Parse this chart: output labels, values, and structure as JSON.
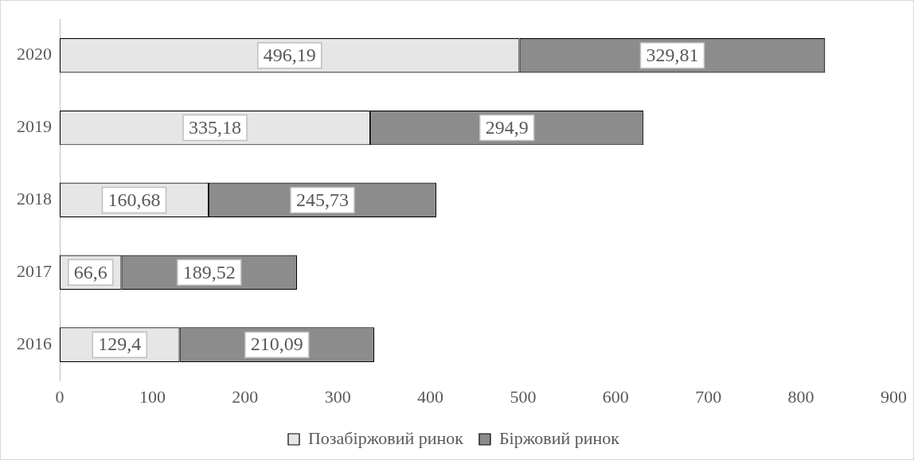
{
  "chart_data": {
    "type": "bar",
    "orientation": "horizontal",
    "stacked": true,
    "categories": [
      "2020",
      "2019",
      "2018",
      "2017",
      "2016"
    ],
    "series": [
      {
        "name": "Позабіржовий ринок",
        "color": "#e6e6e6",
        "values": [
          496.19,
          335.18,
          160.68,
          66.6,
          129.4
        ],
        "value_labels": [
          "496,19",
          "335,18",
          "160,68",
          "66,6",
          "129,4"
        ]
      },
      {
        "name": "Біржовий ринок",
        "color": "#8c8c8c",
        "values": [
          329.81,
          294.9,
          245.73,
          189.52,
          210.09
        ],
        "value_labels": [
          "329,81",
          "294,9",
          "245,73",
          "189,52",
          "210,09"
        ]
      }
    ],
    "xlim": [
      0,
      900
    ],
    "xticks": [
      0,
      100,
      200,
      300,
      400,
      500,
      600,
      700,
      800,
      900
    ],
    "grid": false,
    "legend": "bottom"
  }
}
